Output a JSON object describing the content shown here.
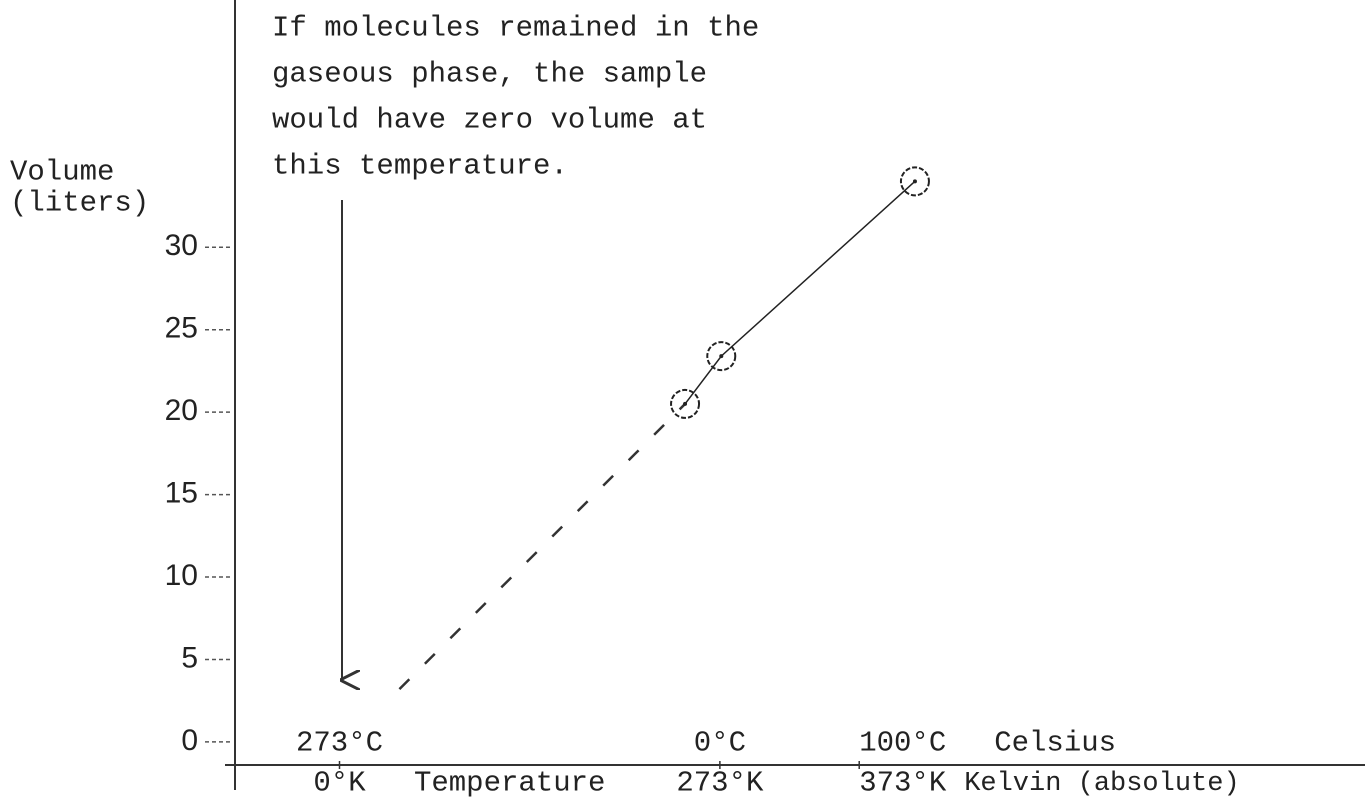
{
  "chart_data": {
    "type": "line",
    "y_label": [
      "Volume",
      "(liters)"
    ],
    "annotation": [
      "If molecules remained in the",
      "gaseous phase, the sample",
      "would have zero volume at",
      "this temperature."
    ],
    "x": [
      248,
      274,
      413
    ],
    "series": [
      {
        "values": [
          20.5,
          23.4,
          34
        ],
        "color": "#222"
      }
    ],
    "extrapolation": {
      "x": [
        43,
        248
      ],
      "values": [
        3.2,
        20.5
      ]
    },
    "xlim": [
      -75,
      736
    ],
    "ylim": [
      -1.4,
      45
    ],
    "xticks": [
      {
        "value": 0,
        "label": "0°K"
      },
      {
        "value": 273,
        "label": "273°K"
      },
      {
        "value": 373,
        "label": "373°K"
      }
    ],
    "celsius_labels": [
      "273°C",
      "0°C",
      "100°C"
    ],
    "x_label": "Temperature",
    "celsius_axis_label": "Celsius",
    "kelvin_axis_label": "Kelvin (absolute)",
    "yticks": [
      0,
      5,
      10,
      15,
      20,
      25,
      30
    ]
  }
}
